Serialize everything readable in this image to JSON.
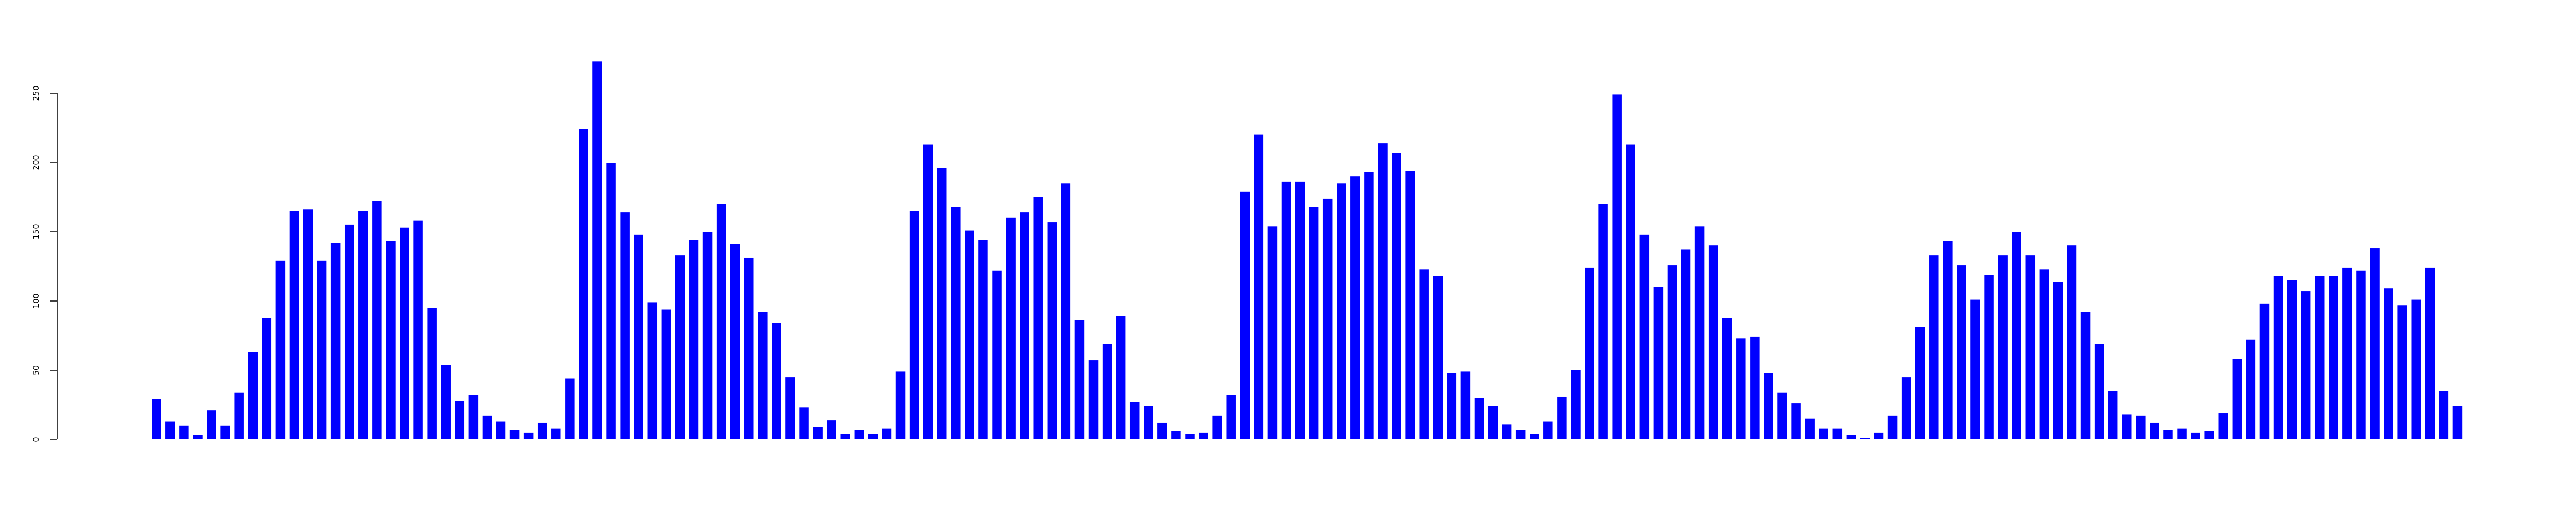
{
  "chart_data": {
    "type": "bar",
    "title": "",
    "xlabel": "",
    "ylabel": "",
    "ylim": [
      0,
      250
    ],
    "yticks": [
      {
        "value": 0,
        "label": "0"
      },
      {
        "value": 50,
        "label": "50"
      },
      {
        "value": 100,
        "label": "100"
      },
      {
        "value": 150,
        "label": "150"
      },
      {
        "value": 200,
        "label": "200"
      },
      {
        "value": 250,
        "label": "250"
      }
    ],
    "bar_color": "#0000ff",
    "values": [
      29,
      13,
      10,
      3,
      21,
      10,
      34,
      63,
      88,
      129,
      165,
      166,
      129,
      142,
      155,
      165,
      172,
      143,
      153,
      158,
      95,
      54,
      28,
      32,
      17,
      13,
      7,
      5,
      12,
      8,
      44,
      224,
      273,
      200,
      164,
      148,
      99,
      94,
      133,
      144,
      150,
      170,
      141,
      131,
      92,
      84,
      45,
      23,
      9,
      14,
      4,
      7,
      4,
      8,
      49,
      165,
      213,
      196,
      168,
      151,
      144,
      122,
      160,
      164,
      175,
      157,
      185,
      86,
      57,
      69,
      89,
      27,
      24,
      12,
      6,
      4,
      5,
      17,
      32,
      179,
      220,
      154,
      186,
      186,
      168,
      174,
      185,
      190,
      193,
      214,
      207,
      194,
      123,
      118,
      48,
      49,
      30,
      24,
      11,
      7,
      4,
      13,
      31,
      50,
      124,
      170,
      249,
      213,
      148,
      110,
      126,
      137,
      154,
      140,
      88,
      73,
      74,
      48,
      34,
      26,
      15,
      8,
      8,
      3,
      1,
      5,
      17,
      45,
      81,
      133,
      143,
      126,
      101,
      119,
      133,
      150,
      133,
      123,
      114,
      140,
      92,
      69,
      35,
      18,
      17,
      12,
      7,
      8,
      5,
      6,
      19,
      58,
      72,
      98,
      118,
      115,
      107,
      118,
      118,
      124,
      122,
      138,
      109,
      97,
      101,
      124,
      35,
      24
    ]
  }
}
